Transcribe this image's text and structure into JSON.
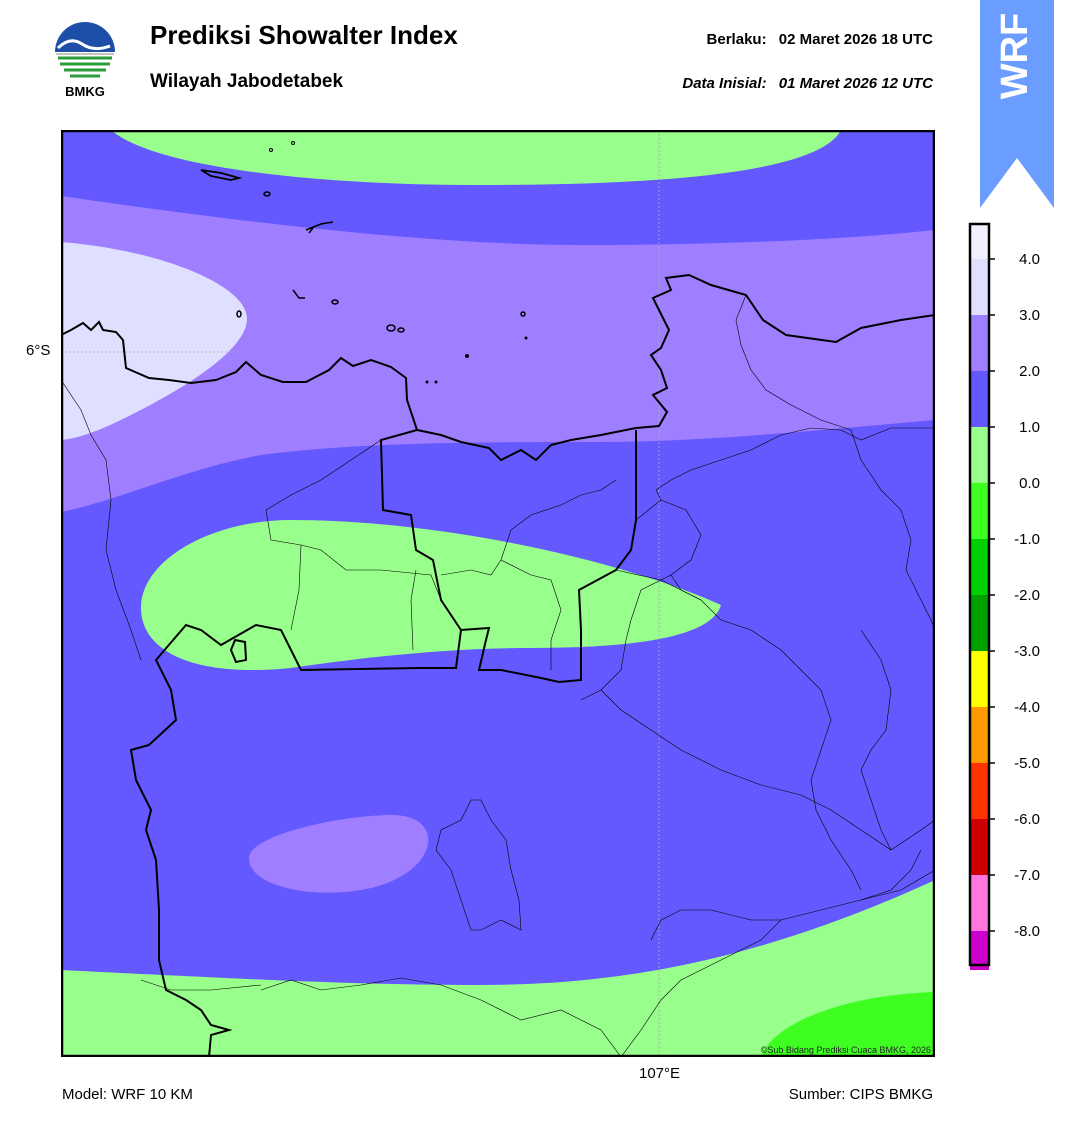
{
  "header": {
    "title": "Prediksi Showalter Index",
    "subtitle": "Wilayah Jabodetabek",
    "valid_label": "Berlaku:",
    "valid_value": "02 Maret 2026 18 UTC",
    "init_label": "Data Inisial:",
    "init_value": "01 Maret 2026 12 UTC"
  },
  "logo": {
    "text": "BMKG",
    "icon": "bmkg-logo",
    "colors": [
      "#1e4fa8",
      "#2a9d3a",
      "#ffffff"
    ]
  },
  "badge": {
    "text": "WRF",
    "color": "#6b9cff"
  },
  "map": {
    "lat_label": "6°S",
    "lon_label": "107°E",
    "credit": "©Sub Bidang Prediksi Cuaca BMKG, 2026",
    "level_colors": {
      "1_to_2": "#6359ff",
      "2_to_3": "#9f7fff",
      "3_to_4": "#dfdfff",
      "0_to_1": "#99ff8c",
      "-1_to_0": "#3fff22"
    }
  },
  "colorbar": {
    "ticks": [
      "4.0",
      "3.0",
      "2.0",
      "1.0",
      "0.0",
      "-1.0",
      "-2.0",
      "-3.0",
      "-4.0",
      "-5.0",
      "-6.0",
      "-7.0",
      "-8.0"
    ],
    "colors": [
      "#f0f0ff",
      "#dfdfff",
      "#9f7fff",
      "#6359ff",
      "#99ff8c",
      "#3fff22",
      "#00d000",
      "#00a000",
      "#ffff00",
      "#ff9900",
      "#ff3300",
      "#cc0000",
      "#ff77dd",
      "#cc00cc",
      "#661166"
    ]
  },
  "footer": {
    "model": "Model: WRF 10 KM",
    "source": "Sumber: CIPS BMKG"
  }
}
